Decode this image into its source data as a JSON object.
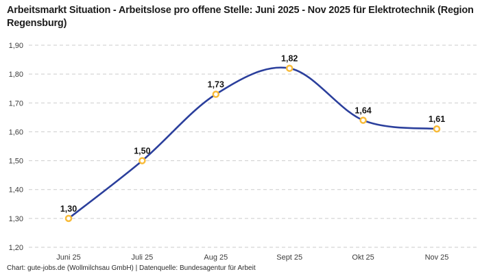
{
  "header": {
    "title": "Arbeitsmarkt Situation - Arbeitslose pro offene Stelle: Juni 2025 - Nov 2025 für Elektrotechnik (Region Regensburg)"
  },
  "footer": {
    "text": "Chart: gute-jobs.de (Wollmilchsau GmbH) | Datenquelle: Bundesagentur für Arbeit"
  },
  "chart_data": {
    "type": "line",
    "title": "Arbeitsmarkt Situation - Arbeitslose pro offene Stelle: Juni 2025 - Nov 2025 für Elektrotechnik (Region Regensburg)",
    "categories": [
      "Juni 25",
      "Juli 25",
      "Aug 25",
      "Sept 25",
      "Okt 25",
      "Nov 25"
    ],
    "values": [
      1.3,
      1.5,
      1.73,
      1.82,
      1.64,
      1.61
    ],
    "point_labels": [
      "1,30",
      "1,50",
      "1,73",
      "1,82",
      "1,64",
      "1,61"
    ],
    "ylim": [
      1.2,
      1.9
    ],
    "ytick_values": [
      1.2,
      1.3,
      1.4,
      1.5,
      1.6,
      1.7,
      1.8,
      1.9
    ],
    "ytick_labels": [
      "1,20",
      "1,30",
      "1,40",
      "1,50",
      "1,60",
      "1,70",
      "1,80",
      "1,90"
    ],
    "xlabel": "",
    "ylabel": "",
    "grid": "horizontal-dashed",
    "legend": "none",
    "line_smoothing": "spline",
    "colors": {
      "line": "#2B3F9C",
      "marker_stroke": "#F8BB39",
      "marker_fill": "#FFFFFF",
      "grid": "#CBCBCB",
      "tick_label": "#3C3C3C",
      "point_label": "#141414",
      "title": "#1C1C1C",
      "background": "#FFFFFF"
    }
  }
}
